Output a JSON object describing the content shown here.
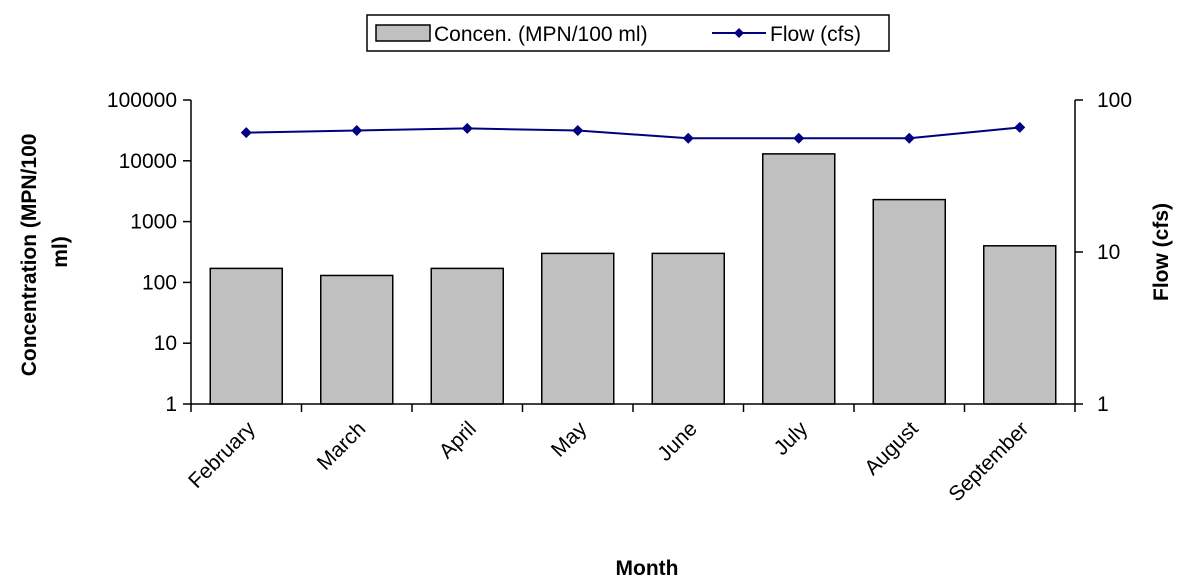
{
  "chart_data": {
    "type": "bar",
    "categories": [
      "February",
      "March",
      "April",
      "May",
      "June",
      "July",
      "August",
      "September"
    ],
    "series": [
      {
        "name": "Concen. (MPN/100 ml)",
        "kind": "bar",
        "axis": "left",
        "color": "#c0c0c0",
        "values": [
          170,
          130,
          170,
          300,
          300,
          13000,
          2300,
          400
        ]
      },
      {
        "name": "Flow (cfs)",
        "kind": "line",
        "axis": "right",
        "color": "#000080",
        "marker": "diamond",
        "values": [
          61,
          63,
          65,
          63,
          56,
          56,
          56,
          66
        ]
      }
    ],
    "xlabel": "Month",
    "ylabel": "Concentration (MPN/100 ml)",
    "ylabel_lines": [
      "Concentration (MPN/100",
      "ml)"
    ],
    "y2label": "Flow (cfs)",
    "yscale": "log",
    "ylim": [
      1,
      100000
    ],
    "yticks": [
      "1",
      "10",
      "100",
      "1000",
      "10000",
      "100000"
    ],
    "y2scale": "log",
    "y2lim": [
      1,
      100
    ],
    "y2ticks": [
      "1",
      "10",
      "100"
    ],
    "legend_position": "top-center",
    "grid": false
  }
}
